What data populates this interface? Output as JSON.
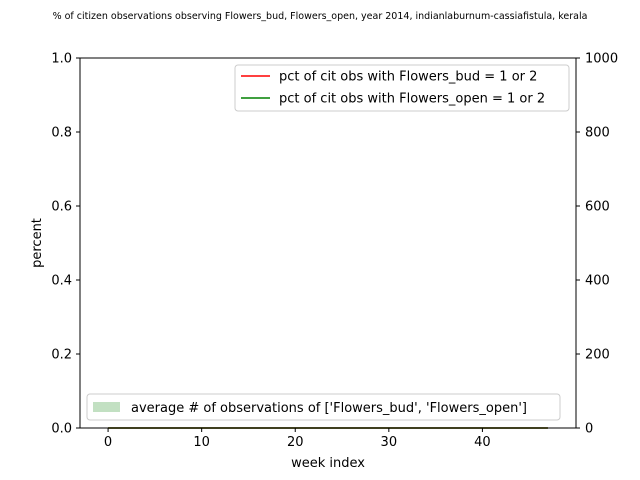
{
  "chart_data": {
    "type": "line",
    "title": "% of citizen observations observing Flowers_bud, Flowers_open, year 2014, indianlaburnum-cassiafistula, kerala",
    "xlabel": "week index",
    "ylabel": "percent",
    "y2label": "",
    "xlim": [
      -3,
      50
    ],
    "ylim": [
      0,
      1
    ],
    "y2lim": [
      0,
      1000
    ],
    "x_ticks": [
      0,
      10,
      20,
      30,
      40
    ],
    "y_ticks": [
      0.0,
      0.2,
      0.4,
      0.6,
      0.8,
      1.0
    ],
    "y_tick_labels": [
      "0.0",
      "0.2",
      "0.4",
      "0.6",
      "0.8",
      "1.0"
    ],
    "y2_ticks": [
      0,
      200,
      400,
      600,
      800,
      1000
    ],
    "grid": false,
    "x_range": [
      0,
      47
    ],
    "series": [
      {
        "name": "pct of cit obs with Flowers_bud = 1 or 2",
        "color": "#ff0000",
        "axis": "left",
        "kind": "line",
        "value": 0
      },
      {
        "name": "pct of cit obs with Flowers_open = 1 or 2",
        "color": "#008000",
        "axis": "left",
        "kind": "line",
        "value": 0
      },
      {
        "name": "average # of observations of ['Flowers_bud', 'Flowers_open']",
        "color": "#c2e0c2",
        "axis": "right",
        "kind": "area",
        "value": 0
      }
    ],
    "legend_upper": "top-right",
    "legend_lower": "bottom-left"
  }
}
